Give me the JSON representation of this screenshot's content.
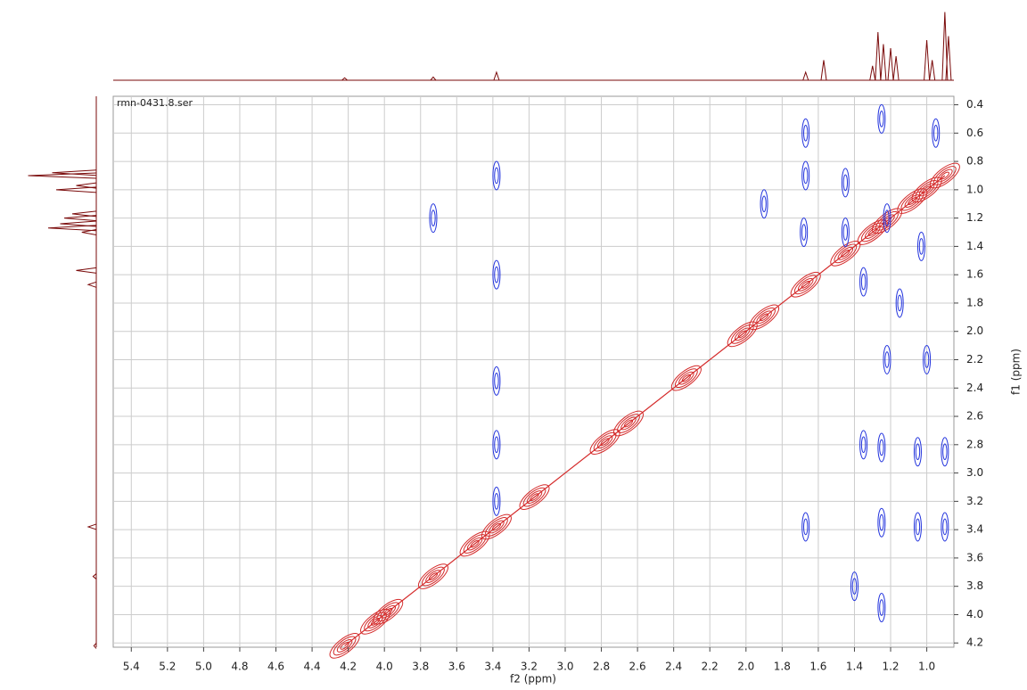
{
  "chart_data": {
    "type": "nmr2d",
    "title": "rmn-0431.8.ser",
    "xlabel": "f2 (ppm)",
    "ylabel": "f1 (ppm)",
    "xlim": [
      5.5,
      0.85
    ],
    "ylim": [
      0.34,
      4.23
    ],
    "xticks": [
      5.4,
      5.2,
      {
        "value": 5,
        "label": "5.0"
      },
      4.8,
      4.6,
      4.4,
      4.2,
      {
        "value": 4,
        "label": "4.0"
      },
      3.8,
      3.6,
      3.4,
      3.2,
      {
        "value": 3,
        "label": "3.0"
      },
      2.8,
      2.6,
      2.4,
      2.2,
      {
        "value": 2,
        "label": "2.0"
      },
      1.8,
      1.6,
      1.4,
      1.2,
      {
        "value": 1,
        "label": "1.0"
      }
    ],
    "yticks": [
      0.4,
      0.6,
      0.8,
      {
        "value": 1,
        "label": "1.0"
      },
      1.2,
      1.4,
      1.6,
      1.8,
      {
        "value": 2,
        "label": "2.0"
      },
      2.2,
      2.4,
      2.6,
      2.8,
      {
        "value": 3,
        "label": "3.0"
      },
      3.2,
      3.4,
      3.6,
      3.8,
      {
        "value": 4,
        "label": "4.0"
      },
      4.2
    ],
    "grid": true,
    "positive_color": "#d42a2a",
    "negative_color": "#2233dd",
    "projection_color": "#7a0a0a",
    "positive_peaks": {
      "f2": [
        4.22,
        4.05,
        3.98,
        3.73,
        3.5,
        3.38,
        3.17,
        2.78,
        2.65,
        2.33,
        2.02,
        1.9,
        1.67,
        1.45,
        1.3,
        1.22,
        1.08,
        1.0,
        0.9
      ],
      "f1": [
        4.22,
        4.05,
        3.98,
        3.73,
        3.5,
        3.38,
        3.17,
        2.78,
        2.65,
        2.33,
        2.02,
        1.9,
        1.67,
        1.45,
        1.3,
        1.22,
        1.08,
        1.0,
        0.9
      ]
    },
    "negative_peaks": {
      "f2": [
        3.38,
        3.38,
        3.38,
        3.38,
        3.38,
        3.73,
        1.67,
        1.67,
        1.68,
        1.45,
        1.45,
        1.25,
        1.25,
        1.25,
        1.25,
        1.22,
        1.22,
        1.0,
        1.05,
        1.05,
        0.9,
        0.9,
        1.35,
        1.35,
        1.03,
        1.9,
        1.15,
        1.4,
        1.67,
        0.95
      ],
      "f1": [
        0.9,
        1.6,
        2.35,
        2.8,
        3.2,
        1.2,
        0.6,
        0.9,
        1.3,
        0.95,
        1.3,
        0.5,
        2.82,
        3.35,
        3.95,
        1.2,
        2.2,
        2.2,
        2.85,
        3.38,
        3.38,
        2.85,
        1.65,
        2.8,
        1.4,
        1.1,
        1.8,
        3.8,
        3.38,
        0.6
      ]
    },
    "projection": {
      "ppm": [
        4.22,
        3.73,
        3.38,
        1.67,
        1.57,
        1.3,
        1.27,
        1.24,
        1.2,
        1.17,
        1.0,
        0.97,
        0.9,
        0.88
      ],
      "intensity": [
        3,
        4,
        10,
        10,
        25,
        18,
        60,
        45,
        40,
        30,
        50,
        25,
        85,
        55
      ]
    }
  }
}
